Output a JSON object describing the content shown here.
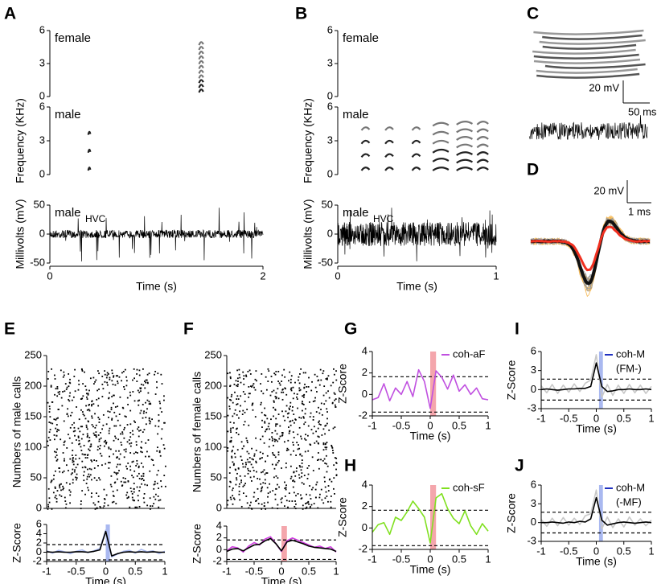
{
  "chart_data": [
    {
      "type": "recording",
      "label": "A",
      "xlim": [
        0,
        2
      ],
      "xticks": [
        0,
        2
      ],
      "xlabel": "Time (s)",
      "panels": [
        {
          "title": "female",
          "ylim": [
            0,
            6
          ],
          "yticks": [
            0,
            3,
            6
          ]
        },
        {
          "title": "male",
          "ylim": [
            0,
            6
          ],
          "yticks": [
            0,
            3,
            6
          ],
          "ylabel": "Frequency (KHz)"
        },
        {
          "title": "male",
          "title_sub": "HVC",
          "ylim": [
            -50,
            50
          ],
          "yticks": [
            -50,
            0,
            50
          ],
          "ylabel": "Millivolts (mV)"
        }
      ]
    },
    {
      "type": "recording",
      "label": "B",
      "xlim": [
        0,
        1
      ],
      "xticks": [
        0,
        1
      ],
      "xlabel": "Time (s)",
      "panels": [
        {
          "title": "female",
          "ylim": [
            0,
            6
          ],
          "yticks": [
            0,
            3,
            6
          ]
        },
        {
          "title": "male",
          "ylim": [
            0,
            6
          ],
          "yticks": [
            0,
            3,
            6
          ],
          "ylabel": "Frequency (KHz)"
        },
        {
          "title": "male",
          "title_sub": "HVC",
          "ylim": [
            -50,
            50
          ],
          "yticks": [
            -50,
            0,
            50
          ],
          "ylabel": "Millivolts (mV)"
        }
      ]
    },
    {
      "type": "example",
      "label": "C",
      "scalebar": [
        "20 mV",
        "50 ms"
      ]
    },
    {
      "type": "waveform",
      "label": "D",
      "scalebar": [
        "20 mV",
        "1 ms"
      ]
    },
    {
      "type": "raster-zscore",
      "label": "E",
      "raster_ylabel": "Numbers of male calls",
      "raster_ylim": [
        0,
        250
      ],
      "raster_yticks": [
        0,
        50,
        100,
        150,
        200,
        250
      ],
      "ylabel": "Z-Score",
      "ylim": [
        -2,
        6
      ],
      "yticks": [
        -2,
        0,
        2,
        4,
        6
      ],
      "xlim": [
        -1,
        1
      ],
      "xticks": [
        -1,
        -0.5,
        0,
        0.5,
        1
      ],
      "xlabel": "Time (s)",
      "thresholds": [
        1.65,
        -1.65
      ],
      "highlight": {
        "range": [
          0,
          0.07
        ],
        "color": "#a9b8f0"
      },
      "x": [
        -1,
        -0.9,
        -0.8,
        -0.7,
        -0.6,
        -0.5,
        -0.4,
        -0.3,
        -0.2,
        -0.1,
        0,
        0.1,
        0.2,
        0.3,
        0.4,
        0.5,
        0.6,
        0.7,
        0.8,
        0.9,
        1
      ],
      "series": [
        {
          "color": "#a9b8f0",
          "values": [
            0.3,
            -0.2,
            0.4,
            0.1,
            -0.3,
            0.2,
            0.5,
            -0.1,
            0.3,
            0.8,
            4.8,
            -1.0,
            -0.4,
            0.2,
            0.4,
            -0.2,
            0.6,
            0.1,
            0.3,
            -0.3,
            0.2
          ]
        },
        {
          "color": "#000000",
          "values": [
            0.1,
            0,
            0.1,
            0,
            0,
            0.1,
            0.1,
            0,
            0.2,
            0.5,
            4.5,
            -0.8,
            -0.3,
            0,
            0.1,
            0,
            0.1,
            0,
            0.1,
            0,
            0
          ]
        }
      ]
    },
    {
      "type": "raster-zscore",
      "label": "F",
      "raster_ylabel": "Numbers of female calls",
      "raster_ylim": [
        0,
        250
      ],
      "raster_yticks": [
        0,
        50,
        100,
        150,
        200,
        250
      ],
      "ylabel": "Z-Score",
      "ylim": [
        -2,
        4
      ],
      "yticks": [
        -2,
        0,
        2,
        4
      ],
      "xlim": [
        -1,
        1
      ],
      "xticks": [
        -1,
        -0.5,
        0,
        0.5,
        1
      ],
      "xlabel": "Time (s)",
      "thresholds": [
        1.65,
        -1.65
      ],
      "highlight": {
        "range": [
          0,
          0.1
        ],
        "color": "#f4a6ac"
      },
      "x": [
        -1,
        -0.9,
        -0.8,
        -0.7,
        -0.6,
        -0.5,
        -0.4,
        -0.3,
        -0.2,
        -0.1,
        0,
        0.1,
        0.2,
        0.3,
        0.4,
        0.5,
        0.6,
        0.7,
        0.8,
        0.9,
        1
      ],
      "series": [
        {
          "color": "#d040e0",
          "values": [
            -0.2,
            0.5,
            0.3,
            -0.4,
            0.6,
            1.2,
            0.8,
            1.8,
            2.2,
            1.0,
            -0.3,
            1.5,
            2.0,
            1.6,
            1.2,
            0.8,
            0.4,
            0.6,
            0.2,
            0.5,
            -0.4
          ]
        },
        {
          "color": "#000000",
          "values": [
            -0.3,
            0.1,
            0.2,
            -0.2,
            0.3,
            0.8,
            0.9,
            1.5,
            1.9,
            1.0,
            -0.2,
            1.3,
            1.6,
            1.3,
            1.0,
            0.6,
            0.4,
            0.3,
            0.2,
            0.1,
            -0.3
          ]
        }
      ]
    },
    {
      "type": "zscore",
      "label": "G",
      "ylabel": "Z-Score",
      "ylim": [
        -2,
        4
      ],
      "yticks": [
        -2,
        0,
        2,
        4
      ],
      "xlim": [
        -1,
        1
      ],
      "xticks": [
        -1,
        -0.5,
        0,
        0.5,
        1
      ],
      "xlabel": "Time (s)",
      "thresholds": [
        1.65,
        -1.65
      ],
      "highlight": {
        "range": [
          0,
          0.1
        ],
        "color": "#f4a6ac"
      },
      "x": [
        -1,
        -0.9,
        -0.8,
        -0.7,
        -0.6,
        -0.5,
        -0.4,
        -0.3,
        -0.2,
        -0.1,
        0,
        0.1,
        0.2,
        0.3,
        0.4,
        0.5,
        0.6,
        0.7,
        0.8,
        0.9,
        1
      ],
      "series": [
        {
          "name": "coh-aF",
          "color": "#c050e0",
          "values": [
            -0.5,
            -0.3,
            1.0,
            -0.6,
            0.6,
            0.0,
            1.2,
            -0.2,
            2.3,
            1.2,
            -1.3,
            2.2,
            1.6,
            0.5,
            1.8,
            0.3,
            0.9,
            0.0,
            0.6,
            -0.4,
            -0.5
          ]
        }
      ]
    },
    {
      "type": "zscore",
      "label": "H",
      "ylabel": "Z-Score",
      "ylim": [
        -2,
        4
      ],
      "yticks": [
        -2,
        0,
        2,
        4
      ],
      "xlim": [
        -1,
        1
      ],
      "xticks": [
        -1,
        -0.5,
        0,
        0.5,
        1
      ],
      "xlabel": "Time (s)",
      "thresholds": [
        1.65,
        -1.65
      ],
      "highlight": {
        "range": [
          0,
          0.1
        ],
        "color": "#f4a6ac"
      },
      "x": [
        -1,
        -0.9,
        -0.8,
        -0.7,
        -0.6,
        -0.5,
        -0.4,
        -0.3,
        -0.2,
        -0.1,
        0,
        0.1,
        0.2,
        0.3,
        0.4,
        0.5,
        0.6,
        0.7,
        0.8,
        0.9,
        1
      ],
      "series": [
        {
          "name": "coh-sF",
          "color": "#80e020",
          "values": [
            -0.4,
            0.3,
            0.5,
            -0.6,
            1.0,
            0.7,
            1.5,
            2.5,
            1.8,
            1.0,
            -1.4,
            2.8,
            3.2,
            1.8,
            0.9,
            0.4,
            1.6,
            0.2,
            -0.6,
            0.4,
            -0.3
          ]
        }
      ]
    },
    {
      "type": "zscore",
      "label": "I",
      "ylabel": "Z-Score",
      "ylim": [
        -3,
        6
      ],
      "yticks": [
        -3,
        0,
        3,
        6
      ],
      "xlim": [
        -1,
        1
      ],
      "xticks": [
        -1,
        -0.5,
        0,
        0.5,
        1
      ],
      "xlabel": "Time (s)",
      "thresholds": [
        1.65,
        -1.65
      ],
      "highlight": {
        "range": [
          0.05,
          0.12
        ],
        "color": "#a9b8f0"
      },
      "x": [
        -1,
        -0.9,
        -0.8,
        -0.7,
        -0.6,
        -0.5,
        -0.4,
        -0.3,
        -0.2,
        -0.1,
        0,
        0.1,
        0.2,
        0.3,
        0.4,
        0.5,
        0.6,
        0.7,
        0.8,
        0.9,
        1
      ],
      "series": [
        {
          "color": "#c8c8c8",
          "values": [
            0.6,
            -0.5,
            0.8,
            -0.6,
            0.7,
            -0.4,
            0.9,
            -0.3,
            1.0,
            1.5,
            5.5,
            -1.2,
            0.8,
            -0.9,
            0.7,
            -0.6,
            0.8,
            -0.5,
            0.7,
            -0.6,
            0.5
          ]
        },
        {
          "name": "coh-M",
          "legend_note": "(FM-)",
          "legend_color": "#2030c0",
          "color": "#000000",
          "values": [
            0,
            0.1,
            0,
            -0.1,
            0,
            0.1,
            0.1,
            0.2,
            0.2,
            0.5,
            4.2,
            0.5,
            -0.3,
            -0.2,
            0,
            0,
            0.1,
            0,
            0,
            0.1,
            0
          ]
        }
      ]
    },
    {
      "type": "zscore",
      "label": "J",
      "ylabel": "Z-Score",
      "ylim": [
        -3,
        6
      ],
      "yticks": [
        -3,
        0,
        3,
        6
      ],
      "xlim": [
        -1,
        1
      ],
      "xticks": [
        -1,
        -0.5,
        0,
        0.5,
        1
      ],
      "xlabel": "Time (s)",
      "thresholds": [
        1.65,
        -1.65
      ],
      "highlight": {
        "range": [
          0.05,
          0.12
        ],
        "color": "#a9b8f0"
      },
      "x": [
        -1,
        -0.9,
        -0.8,
        -0.7,
        -0.6,
        -0.5,
        -0.4,
        -0.3,
        -0.2,
        -0.1,
        0,
        0.1,
        0.2,
        0.3,
        0.4,
        0.5,
        0.6,
        0.7,
        0.8,
        0.9,
        1
      ],
      "series": [
        {
          "color": "#c8c8c8",
          "values": [
            0.5,
            -0.6,
            0.7,
            -0.5,
            0.8,
            -0.4,
            0.7,
            -0.3,
            1.1,
            1.4,
            5.2,
            -1.0,
            0.9,
            -0.8,
            0.6,
            -0.7,
            0.9,
            -0.4,
            0.6,
            -0.5,
            0.4
          ]
        },
        {
          "name": "coh-M",
          "legend_note": "(-MF)",
          "legend_color": "#2030c0",
          "color": "#000000",
          "values": [
            0,
            0,
            0.1,
            0,
            -0.1,
            0.1,
            0,
            0.2,
            0.1,
            0.6,
            4.0,
            0.4,
            -0.4,
            -0.2,
            0,
            0.1,
            0,
            -0.1,
            0,
            0.1,
            0
          ]
        }
      ]
    }
  ]
}
